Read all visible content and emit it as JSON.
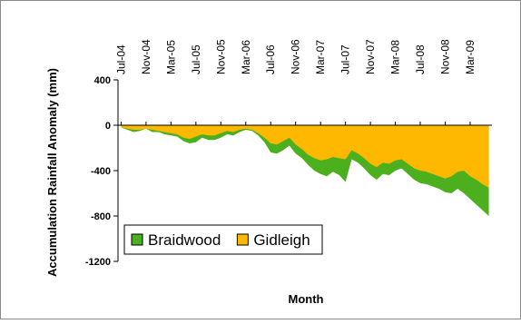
{
  "chart_data": {
    "type": "area",
    "xlabel": "Month",
    "ylabel": "Accumulation Rainfall Anomaly (mm)",
    "categories": [
      "Jul-04",
      null,
      null,
      null,
      "Nov-04",
      null,
      null,
      null,
      "Mar-05",
      null,
      null,
      null,
      "Jul-05",
      null,
      null,
      null,
      "Nov-05",
      null,
      null,
      null,
      "Mar-06",
      null,
      null,
      null,
      "Jul-06",
      null,
      null,
      null,
      "Nov-06",
      null,
      null,
      null,
      "Mar-07",
      null,
      null,
      null,
      "Jul-07",
      null,
      null,
      null,
      "Nov-07",
      null,
      null,
      null,
      "Mar-08",
      null,
      null,
      null,
      "Jul-08",
      null,
      null,
      null,
      "Nov-08",
      null,
      null,
      null,
      "Mar-09",
      null,
      null,
      null
    ],
    "series": [
      {
        "name": "Braidwood",
        "color": "#4caf1e",
        "values": [
          -20,
          -40,
          -60,
          -50,
          -30,
          -60,
          -60,
          -80,
          -90,
          -100,
          -140,
          -160,
          -150,
          -110,
          -130,
          -130,
          -110,
          -80,
          -90,
          -60,
          -40,
          -50,
          -90,
          -150,
          -240,
          -250,
          -220,
          -180,
          -250,
          -290,
          -350,
          -400,
          -430,
          -450,
          -410,
          -440,
          -500,
          -300,
          -330,
          -380,
          -440,
          -480,
          -430,
          -440,
          -400,
          -380,
          -430,
          -480,
          -510,
          -520,
          -540,
          -560,
          -590,
          -600,
          -560,
          -600,
          -650,
          -700,
          -750,
          -800
        ]
      },
      {
        "name": "Gidleigh",
        "color": "#ffb800",
        "values": [
          -20,
          -30,
          -40,
          -40,
          -30,
          -40,
          -50,
          -60,
          -70,
          -80,
          -110,
          -120,
          -100,
          -80,
          -90,
          -90,
          -70,
          -50,
          -60,
          -40,
          -30,
          -40,
          -70,
          -110,
          -160,
          -170,
          -140,
          -110,
          -170,
          -210,
          -260,
          -290,
          -310,
          -300,
          -280,
          -290,
          -300,
          -220,
          -250,
          -290,
          -340,
          -370,
          -330,
          -340,
          -310,
          -300,
          -340,
          -380,
          -400,
          -410,
          -430,
          -450,
          -470,
          -450,
          -410,
          -400,
          -450,
          -480,
          -520,
          -550
        ]
      }
    ],
    "ylim": [
      -1200,
      400
    ],
    "yticks": [
      400,
      0,
      -400,
      -800,
      -1200
    ],
    "legend": "lower left"
  }
}
